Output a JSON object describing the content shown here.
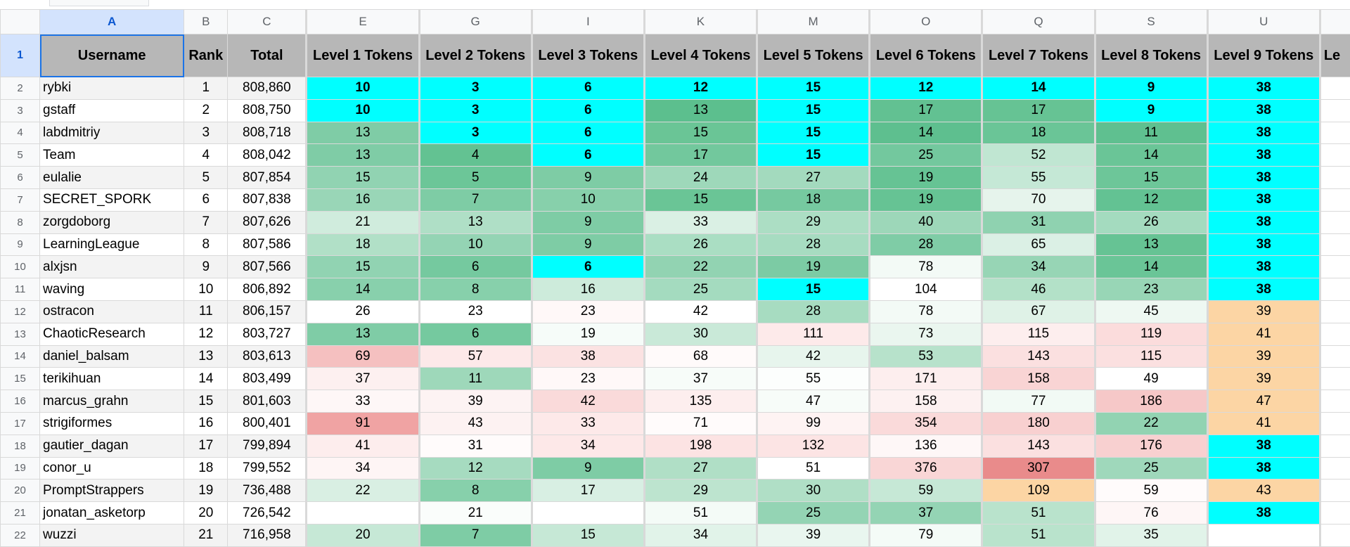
{
  "columns": [
    {
      "letter": "A",
      "width": 205,
      "header": "Username",
      "selected": true
    },
    {
      "letter": "B",
      "width": 62,
      "header": "Rank"
    },
    {
      "letter": "C",
      "width": 112,
      "header": "Total"
    },
    {
      "letter": "E",
      "width": 160,
      "header": "Level 1 Tokens",
      "gap": true
    },
    {
      "letter": "G",
      "width": 160,
      "header": "Level 2 Tokens",
      "gap": true
    },
    {
      "letter": "I",
      "width": 160,
      "header": "Level 3 Tokens",
      "gap": true
    },
    {
      "letter": "K",
      "width": 160,
      "header": "Level 4 Tokens",
      "gap": true
    },
    {
      "letter": "M",
      "width": 160,
      "header": "Level 5 Tokens",
      "gap": true
    },
    {
      "letter": "O",
      "width": 160,
      "header": "Level 6 Tokens",
      "gap": true
    },
    {
      "letter": "Q",
      "width": 160,
      "header": "Level 7 Tokens",
      "gap": true
    },
    {
      "letter": "S",
      "width": 160,
      "header": "Level 8 Tokens",
      "gap": true
    },
    {
      "letter": "U",
      "width": 160,
      "header": "Level 9 Tokens",
      "gap": true
    },
    {
      "letter": "",
      "width": 50,
      "header": "Le",
      "gap": true
    }
  ],
  "header_row_number": "1",
  "rows": [
    {
      "n": "2",
      "user": "rybki",
      "rank": "1",
      "total": "808,860",
      "tokens": [
        {
          "v": "10",
          "c": "#00ffff",
          "b": true
        },
        {
          "v": "3",
          "c": "#00ffff",
          "b": true
        },
        {
          "v": "6",
          "c": "#00ffff",
          "b": true
        },
        {
          "v": "12",
          "c": "#00ffff",
          "b": true
        },
        {
          "v": "15",
          "c": "#00ffff",
          "b": true
        },
        {
          "v": "12",
          "c": "#00ffff",
          "b": true
        },
        {
          "v": "14",
          "c": "#00ffff",
          "b": true
        },
        {
          "v": "9",
          "c": "#00ffff",
          "b": true
        },
        {
          "v": "38",
          "c": "#00ffff",
          "b": true
        }
      ]
    },
    {
      "n": "3",
      "user": "gstaff",
      "rank": "2",
      "total": "808,750",
      "tokens": [
        {
          "v": "10",
          "c": "#00ffff",
          "b": true
        },
        {
          "v": "3",
          "c": "#00ffff",
          "b": true
        },
        {
          "v": "6",
          "c": "#00ffff",
          "b": true
        },
        {
          "v": "13",
          "c": "#5cbf8e"
        },
        {
          "v": "15",
          "c": "#00ffff",
          "b": true
        },
        {
          "v": "17",
          "c": "#62c192"
        },
        {
          "v": "17",
          "c": "#66c394"
        },
        {
          "v": "9",
          "c": "#00ffff",
          "b": true
        },
        {
          "v": "38",
          "c": "#00ffff",
          "b": true
        }
      ]
    },
    {
      "n": "4",
      "user": "labdmitriy",
      "rank": "3",
      "total": "808,718",
      "tokens": [
        {
          "v": "13",
          "c": "#7fcca6"
        },
        {
          "v": "3",
          "c": "#00ffff",
          "b": true
        },
        {
          "v": "6",
          "c": "#00ffff",
          "b": true
        },
        {
          "v": "15",
          "c": "#6ac596"
        },
        {
          "v": "15",
          "c": "#00ffff",
          "b": true
        },
        {
          "v": "14",
          "c": "#5ebf8f"
        },
        {
          "v": "18",
          "c": "#6ac597"
        },
        {
          "v": "11",
          "c": "#5fc090"
        },
        {
          "v": "38",
          "c": "#00ffff",
          "b": true
        }
      ]
    },
    {
      "n": "5",
      "user": "Team",
      "rank": "4",
      "total": "808,042",
      "tokens": [
        {
          "v": "13",
          "c": "#7fcca6"
        },
        {
          "v": "4",
          "c": "#63c292"
        },
        {
          "v": "6",
          "c": "#00ffff",
          "b": true
        },
        {
          "v": "17",
          "c": "#72c89d"
        },
        {
          "v": "15",
          "c": "#00ffff",
          "b": true
        },
        {
          "v": "25",
          "c": "#73c89e"
        },
        {
          "v": "52",
          "c": "#c0e6d2"
        },
        {
          "v": "14",
          "c": "#6ac597"
        },
        {
          "v": "38",
          "c": "#00ffff",
          "b": true
        }
      ]
    },
    {
      "n": "6",
      "user": "eulalie",
      "rank": "5",
      "total": "807,854",
      "tokens": [
        {
          "v": "15",
          "c": "#91d3b2"
        },
        {
          "v": "5",
          "c": "#6cc698"
        },
        {
          "v": "9",
          "c": "#7ecca5"
        },
        {
          "v": "24",
          "c": "#9ed8ba"
        },
        {
          "v": "27",
          "c": "#a3dabe"
        },
        {
          "v": "19",
          "c": "#66c394"
        },
        {
          "v": "55",
          "c": "#c5e8d6"
        },
        {
          "v": "15",
          "c": "#6dc699"
        },
        {
          "v": "38",
          "c": "#00ffff",
          "b": true
        }
      ]
    },
    {
      "n": "7",
      "user": "SECRET_SPORK",
      "rank": "6",
      "total": "807,838",
      "tokens": [
        {
          "v": "16",
          "c": "#99d6b7"
        },
        {
          "v": "7",
          "c": "#7ecca5"
        },
        {
          "v": "10",
          "c": "#87d0ab"
        },
        {
          "v": "15",
          "c": "#6ac596"
        },
        {
          "v": "18",
          "c": "#76c9a0"
        },
        {
          "v": "19",
          "c": "#66c394"
        },
        {
          "v": "70",
          "c": "#e6f4ec"
        },
        {
          "v": "12",
          "c": "#63c293"
        },
        {
          "v": "38",
          "c": "#00ffff",
          "b": true
        }
      ]
    },
    {
      "n": "8",
      "user": "zorgdoborg",
      "rank": "7",
      "total": "807,626",
      "tokens": [
        {
          "v": "21",
          "c": "#d0ecdd"
        },
        {
          "v": "13",
          "c": "#afdfc6"
        },
        {
          "v": "9",
          "c": "#7ecca5"
        },
        {
          "v": "33",
          "c": "#daf0e4"
        },
        {
          "v": "29",
          "c": "#acdec4"
        },
        {
          "v": "40",
          "c": "#9dd7b9"
        },
        {
          "v": "31",
          "c": "#8fd2b0"
        },
        {
          "v": "26",
          "c": "#a4dbbf"
        },
        {
          "v": "38",
          "c": "#00ffff",
          "b": true
        }
      ]
    },
    {
      "n": "9",
      "user": "LearningLeague",
      "rank": "8",
      "total": "807,586",
      "tokens": [
        {
          "v": "18",
          "c": "#b1e0c7"
        },
        {
          "v": "10",
          "c": "#94d4b4"
        },
        {
          "v": "9",
          "c": "#7ecca5"
        },
        {
          "v": "26",
          "c": "#aadec3"
        },
        {
          "v": "28",
          "c": "#a7dcc1"
        },
        {
          "v": "28",
          "c": "#7fcca6"
        },
        {
          "v": "65",
          "c": "#dbf0e5"
        },
        {
          "v": "13",
          "c": "#66c394"
        },
        {
          "v": "38",
          "c": "#00ffff",
          "b": true
        }
      ]
    },
    {
      "n": "10",
      "user": "alxjsn",
      "rank": "9",
      "total": "807,566",
      "tokens": [
        {
          "v": "15",
          "c": "#91d3b2"
        },
        {
          "v": "6",
          "c": "#75c99f"
        },
        {
          "v": "6",
          "c": "#00ffff",
          "b": true
        },
        {
          "v": "22",
          "c": "#92d3b2"
        },
        {
          "v": "19",
          "c": "#7ccba4"
        },
        {
          "v": "78",
          "c": "#f3faf6"
        },
        {
          "v": "34",
          "c": "#97d5b5"
        },
        {
          "v": "14",
          "c": "#6ac597"
        },
        {
          "v": "38",
          "c": "#00ffff",
          "b": true
        }
      ]
    },
    {
      "n": "11",
      "user": "waving",
      "rank": "10",
      "total": "806,892",
      "tokens": [
        {
          "v": "14",
          "c": "#88d0ac"
        },
        {
          "v": "8",
          "c": "#87d0ab"
        },
        {
          "v": "16",
          "c": "#cdebdb"
        },
        {
          "v": "25",
          "c": "#a4dbbf"
        },
        {
          "v": "15",
          "c": "#00ffff",
          "b": true
        },
        {
          "v": "104",
          "c": "#ffffff"
        },
        {
          "v": "46",
          "c": "#b3e1c8"
        },
        {
          "v": "23",
          "c": "#98d6b6"
        },
        {
          "v": "38",
          "c": "#00ffff",
          "b": true
        }
      ]
    },
    {
      "n": "12",
      "user": "ostracon",
      "rank": "11",
      "total": "806,157",
      "tokens": [
        {
          "v": "26",
          "c": "#ffffff"
        },
        {
          "v": "23",
          "c": "#ffffff"
        },
        {
          "v": "23",
          "c": "#fff8f8"
        },
        {
          "v": "42",
          "c": "#ffffff"
        },
        {
          "v": "28",
          "c": "#a7dcc1"
        },
        {
          "v": "78",
          "c": "#f3faf6"
        },
        {
          "v": "67",
          "c": "#dff2e7"
        },
        {
          "v": "45",
          "c": "#eef8f2"
        },
        {
          "v": "39",
          "c": "#fcd5a4"
        }
      ]
    },
    {
      "n": "13",
      "user": "ChaoticResearch",
      "rank": "12",
      "total": "803,727",
      "tokens": [
        {
          "v": "13",
          "c": "#7fcca6"
        },
        {
          "v": "6",
          "c": "#75c99f"
        },
        {
          "v": "19",
          "c": "#f6fcf9"
        },
        {
          "v": "30",
          "c": "#c9e9d8"
        },
        {
          "v": "111",
          "c": "#fdeaea"
        },
        {
          "v": "73",
          "c": "#eaf6ef"
        },
        {
          "v": "115",
          "c": "#fdeeee"
        },
        {
          "v": "119",
          "c": "#fbdcdc"
        },
        {
          "v": "41",
          "c": "#fcd5a4"
        }
      ]
    },
    {
      "n": "14",
      "user": "daniel_balsam",
      "rank": "13",
      "total": "803,613",
      "tokens": [
        {
          "v": "69",
          "c": "#f5c0c0"
        },
        {
          "v": "57",
          "c": "#fde9e9"
        },
        {
          "v": "38",
          "c": "#fbe2e2"
        },
        {
          "v": "68",
          "c": "#fffafa"
        },
        {
          "v": "42",
          "c": "#e7f5ed"
        },
        {
          "v": "53",
          "c": "#b7e2cb"
        },
        {
          "v": "143",
          "c": "#fbe0e0"
        },
        {
          "v": "115",
          "c": "#fbe0e0"
        },
        {
          "v": "39",
          "c": "#fcd5a4"
        }
      ]
    },
    {
      "n": "15",
      "user": "terikihuan",
      "rank": "14",
      "total": "803,499",
      "tokens": [
        {
          "v": "37",
          "c": "#fdf0f0"
        },
        {
          "v": "11",
          "c": "#9ed8ba"
        },
        {
          "v": "23",
          "c": "#fff8f8"
        },
        {
          "v": "37",
          "c": "#f7fcf9"
        },
        {
          "v": "55",
          "c": "#fcfefd"
        },
        {
          "v": "171",
          "c": "#fdeeee"
        },
        {
          "v": "158",
          "c": "#f9d4d4"
        },
        {
          "v": "49",
          "c": "#ffffff"
        },
        {
          "v": "39",
          "c": "#fcd5a4"
        }
      ]
    },
    {
      "n": "16",
      "user": "marcus_grahn",
      "rank": "15",
      "total": "801,603",
      "tokens": [
        {
          "v": "33",
          "c": "#fef7f7"
        },
        {
          "v": "39",
          "c": "#fdf3f3"
        },
        {
          "v": "42",
          "c": "#fadada"
        },
        {
          "v": "135",
          "c": "#fdeeee"
        },
        {
          "v": "47",
          "c": "#f7fcf9"
        },
        {
          "v": "158",
          "c": "#fdf1f1"
        },
        {
          "v": "77",
          "c": "#f2faf5"
        },
        {
          "v": "186",
          "c": "#f6c8c8"
        },
        {
          "v": "47",
          "c": "#fcd5a4"
        }
      ]
    },
    {
      "n": "17",
      "user": "strigiformes",
      "rank": "16",
      "total": "800,401",
      "tokens": [
        {
          "v": "91",
          "c": "#f0a3a3"
        },
        {
          "v": "43",
          "c": "#fdf2f2"
        },
        {
          "v": "33",
          "c": "#fde9e9"
        },
        {
          "v": "71",
          "c": "#fffbfb"
        },
        {
          "v": "99",
          "c": "#fef3f3"
        },
        {
          "v": "354",
          "c": "#fadada"
        },
        {
          "v": "180",
          "c": "#f8d0d0"
        },
        {
          "v": "22",
          "c": "#92d3b2"
        },
        {
          "v": "41",
          "c": "#fcd5a4"
        }
      ]
    },
    {
      "n": "18",
      "user": "gautier_dagan",
      "rank": "17",
      "total": "799,894",
      "tokens": [
        {
          "v": "41",
          "c": "#fdeded"
        },
        {
          "v": "31",
          "c": "#fffbfb"
        },
        {
          "v": "34",
          "c": "#fde8e8"
        },
        {
          "v": "198",
          "c": "#fce3e3"
        },
        {
          "v": "132",
          "c": "#fce4e4"
        },
        {
          "v": "136",
          "c": "#fef7f7"
        },
        {
          "v": "143",
          "c": "#fbe0e0"
        },
        {
          "v": "176",
          "c": "#f8d0d0"
        },
        {
          "v": "38",
          "c": "#00ffff",
          "b": true
        }
      ]
    },
    {
      "n": "19",
      "user": "conor_u",
      "rank": "18",
      "total": "799,552",
      "tokens": [
        {
          "v": "34",
          "c": "#fef5f5"
        },
        {
          "v": "12",
          "c": "#a6dbc0"
        },
        {
          "v": "9",
          "c": "#7ecca5"
        },
        {
          "v": "27",
          "c": "#b0dfc6"
        },
        {
          "v": "51",
          "c": "#ffffff"
        },
        {
          "v": "376",
          "c": "#f9d6d6"
        },
        {
          "v": "307",
          "c": "#e98b8b"
        },
        {
          "v": "25",
          "c": "#9fd8bb"
        },
        {
          "v": "38",
          "c": "#00ffff",
          "b": true
        }
      ]
    },
    {
      "n": "20",
      "user": "PromptStrappers",
      "rank": "19",
      "total": "736,488",
      "tokens": [
        {
          "v": "22",
          "c": "#d9efe3"
        },
        {
          "v": "8",
          "c": "#87d0ab"
        },
        {
          "v": "17",
          "c": "#d8efe3"
        },
        {
          "v": "29",
          "c": "#bde4cf"
        },
        {
          "v": "30",
          "c": "#b0dfc6"
        },
        {
          "v": "59",
          "c": "#c6e8d6"
        },
        {
          "v": "109",
          "c": "#fcd5a4"
        },
        {
          "v": "59",
          "c": "#fffbfb"
        },
        {
          "v": "43",
          "c": "#fcd5a4"
        }
      ]
    },
    {
      "n": "21",
      "user": "jonatan_asketorp",
      "rank": "20",
      "total": "726,542",
      "tokens": [
        {
          "v": "",
          "c": "#ffffff"
        },
        {
          "v": "21",
          "c": "#fafdfb"
        },
        {
          "v": "",
          "c": "#ffffff"
        },
        {
          "v": "51",
          "c": "#f4fbf7"
        },
        {
          "v": "25",
          "c": "#94d4b4"
        },
        {
          "v": "37",
          "c": "#94d4b4"
        },
        {
          "v": "51",
          "c": "#b9e3cc"
        },
        {
          "v": "76",
          "c": "#fef6f6"
        },
        {
          "v": "38",
          "c": "#00ffff",
          "b": true
        }
      ]
    },
    {
      "n": "22",
      "user": "wuzzi",
      "rank": "21",
      "total": "716,958",
      "tokens": [
        {
          "v": "20",
          "c": "#c6e8d6"
        },
        {
          "v": "7",
          "c": "#7ecca5"
        },
        {
          "v": "15",
          "c": "#c6e8d6"
        },
        {
          "v": "34",
          "c": "#e1f3e9"
        },
        {
          "v": "39",
          "c": "#e9f6ef"
        },
        {
          "v": "79",
          "c": "#f4fbf7"
        },
        {
          "v": "51",
          "c": "#b9e3cc"
        },
        {
          "v": "35",
          "c": "#e1f3e9"
        },
        {
          "v": "",
          "c": "#ffffff"
        }
      ]
    }
  ]
}
